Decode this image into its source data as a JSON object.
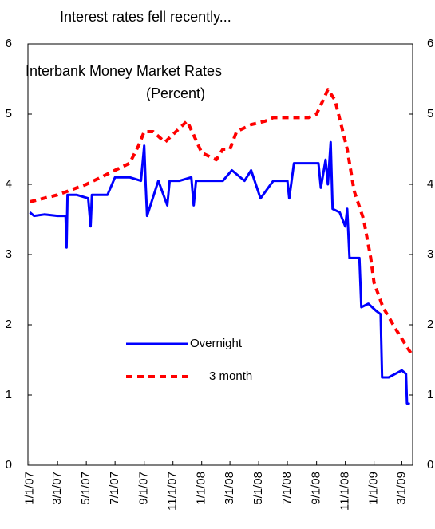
{
  "header": {
    "title": "Interest rates fell recently..."
  },
  "chart_data": {
    "type": "line",
    "title": "Interbank Money Market Rates",
    "subtitle": "(Percent)",
    "xlim": [
      "2006-12-28",
      "2009-03-24"
    ],
    "xticks": [
      {
        "value": "2007-01-01",
        "label": "1/1/07"
      },
      {
        "value": "2007-03-01",
        "label": "3/1/07"
      },
      {
        "value": "2007-05-01",
        "label": "5/1/07"
      },
      {
        "value": "2007-07-01",
        "label": "7/1/07"
      },
      {
        "value": "2007-09-01",
        "label": "9/1/07"
      },
      {
        "value": "2007-11-01",
        "label": "11/1/07"
      },
      {
        "value": "2008-01-01",
        "label": "1/1/08"
      },
      {
        "value": "2008-03-01",
        "label": "3/1/08"
      },
      {
        "value": "2008-05-01",
        "label": "5/1/08"
      },
      {
        "value": "2008-07-01",
        "label": "7/1/08"
      },
      {
        "value": "2008-09-01",
        "label": "9/1/08"
      },
      {
        "value": "2008-11-01",
        "label": "11/1/08"
      },
      {
        "value": "2009-01-01",
        "label": "1/1/09"
      },
      {
        "value": "2009-03-01",
        "label": "3/1/09"
      }
    ],
    "ylim": [
      0,
      6
    ],
    "yticks": [
      0,
      1,
      2,
      3,
      4,
      5,
      6
    ],
    "y2lim": [
      0,
      6
    ],
    "y2ticks": [
      0,
      1,
      2,
      3,
      4,
      5,
      6
    ],
    "series": [
      {
        "name": "Overnight",
        "color": "#0000ff",
        "dash": false,
        "x": [
          "2007-01-01",
          "2007-01-10",
          "2007-02-01",
          "2007-03-01",
          "2007-03-18",
          "2007-03-20",
          "2007-03-22",
          "2007-04-10",
          "2007-05-05",
          "2007-05-10",
          "2007-05-13",
          "2007-06-15",
          "2007-07-01",
          "2007-08-01",
          "2007-08-25",
          "2007-09-01",
          "2007-09-04",
          "2007-09-07",
          "2007-10-01",
          "2007-10-20",
          "2007-10-25",
          "2007-11-15",
          "2007-12-10",
          "2007-12-15",
          "2007-12-20",
          "2008-01-15",
          "2008-02-15",
          "2008-03-05",
          "2008-04-01",
          "2008-04-15",
          "2008-05-05",
          "2008-06-01",
          "2008-07-01",
          "2008-07-05",
          "2008-07-15",
          "2008-08-15",
          "2008-09-05",
          "2008-09-10",
          "2008-09-20",
          "2008-09-25",
          "2008-10-01",
          "2008-10-05",
          "2008-10-20",
          "2008-11-01",
          "2008-11-05",
          "2008-11-10",
          "2008-12-01",
          "2008-12-05",
          "2008-12-20",
          "2009-01-05",
          "2009-01-15",
          "2009-01-18",
          "2009-02-01",
          "2009-02-15",
          "2009-03-01",
          "2009-03-10",
          "2009-03-12",
          "2009-03-18"
        ],
        "values": [
          3.6,
          3.55,
          3.57,
          3.55,
          3.55,
          3.1,
          3.85,
          3.85,
          3.8,
          3.4,
          3.85,
          3.85,
          4.1,
          4.1,
          4.05,
          4.55,
          4.0,
          3.55,
          4.05,
          3.7,
          4.05,
          4.05,
          4.1,
          3.7,
          4.05,
          4.05,
          4.05,
          4.2,
          4.05,
          4.2,
          3.8,
          4.05,
          4.05,
          3.8,
          4.3,
          4.3,
          4.3,
          3.95,
          4.35,
          4.0,
          4.6,
          3.65,
          3.6,
          3.4,
          3.65,
          2.95,
          2.95,
          2.25,
          2.3,
          2.2,
          2.15,
          1.25,
          1.25,
          1.3,
          1.35,
          1.3,
          0.88,
          0.87
        ]
      },
      {
        "name": "3 month",
        "color": "#ff0000",
        "dash": true,
        "x": [
          "2007-01-01",
          "2007-03-01",
          "2007-05-01",
          "2007-06-01",
          "2007-07-01",
          "2007-08-01",
          "2007-08-20",
          "2007-09-01",
          "2007-09-20",
          "2007-10-15",
          "2007-11-15",
          "2007-12-01",
          "2007-12-15",
          "2008-01-01",
          "2008-02-01",
          "2008-02-15",
          "2008-03-01",
          "2008-03-15",
          "2008-04-15",
          "2008-05-15",
          "2008-06-01",
          "2008-07-01",
          "2008-08-01",
          "2008-08-15",
          "2008-09-01",
          "2008-09-15",
          "2008-09-25",
          "2008-10-10",
          "2008-10-25",
          "2008-11-05",
          "2008-11-20",
          "2008-12-10",
          "2008-12-25",
          "2009-01-01",
          "2009-01-20",
          "2009-02-15",
          "2009-03-01",
          "2009-03-15",
          "2009-03-20"
        ],
        "values": [
          3.75,
          3.85,
          4.0,
          4.1,
          4.2,
          4.3,
          4.55,
          4.75,
          4.75,
          4.6,
          4.8,
          4.9,
          4.7,
          4.45,
          4.35,
          4.5,
          4.5,
          4.75,
          4.85,
          4.9,
          4.95,
          4.95,
          4.95,
          4.95,
          5.0,
          5.2,
          5.35,
          5.2,
          4.8,
          4.5,
          3.9,
          3.5,
          2.95,
          2.6,
          2.25,
          1.95,
          1.8,
          1.65,
          1.6
        ]
      }
    ]
  }
}
